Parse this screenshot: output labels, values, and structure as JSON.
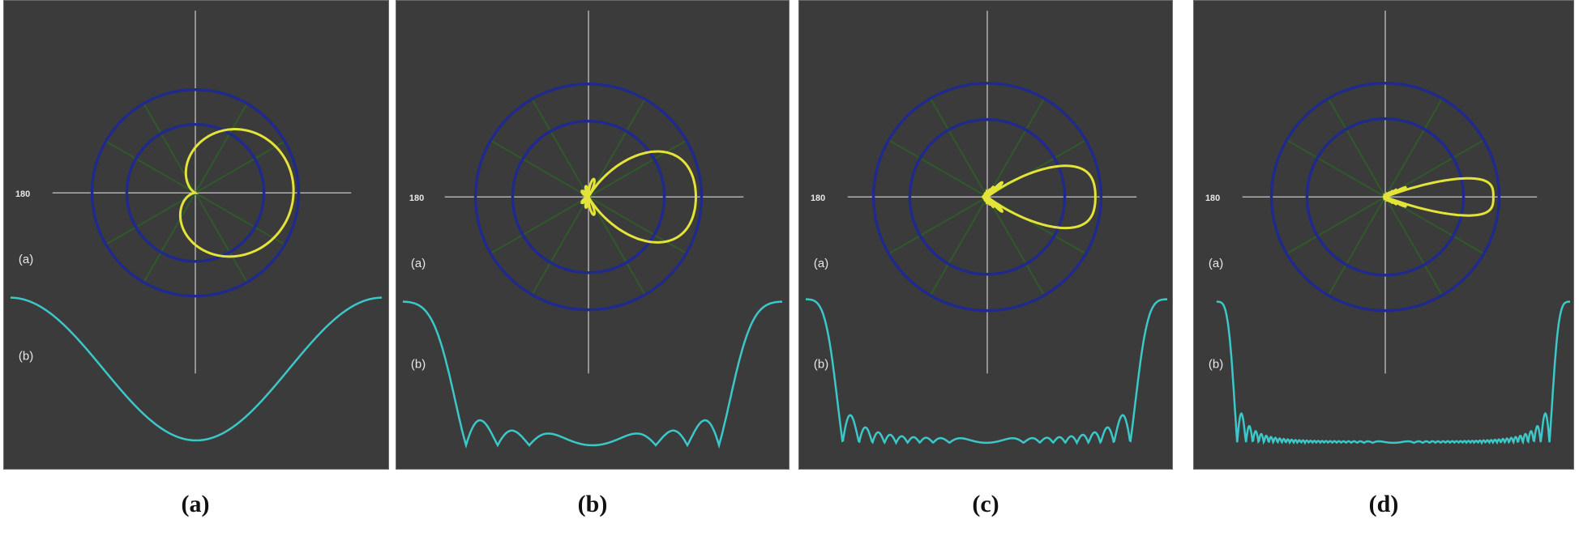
{
  "colors": {
    "background": "#3b3b3b",
    "ring": "#1f2a8c",
    "spoke": "#2f5a2a",
    "axis": "#b0b0b0",
    "polar_curve": "#e3e33a",
    "linear_curve": "#3cc8c8"
  },
  "panels": [
    {
      "caption": "(a)",
      "axis_label": "180",
      "polar_label": "(a)",
      "linear_label": "(b)",
      "pattern": "cardioid"
    },
    {
      "caption": "(b)",
      "axis_label": "180",
      "polar_label": "(a)",
      "linear_label": "(b)",
      "pattern": "two-lobe"
    },
    {
      "caption": "(c)",
      "axis_label": "180",
      "polar_label": "(a)",
      "linear_label": "(b)",
      "pattern": "narrow-beam"
    },
    {
      "caption": "(d)",
      "axis_label": "180",
      "polar_label": "(a)",
      "linear_label": "(b)",
      "pattern": "very-narrow-beam"
    }
  ]
}
